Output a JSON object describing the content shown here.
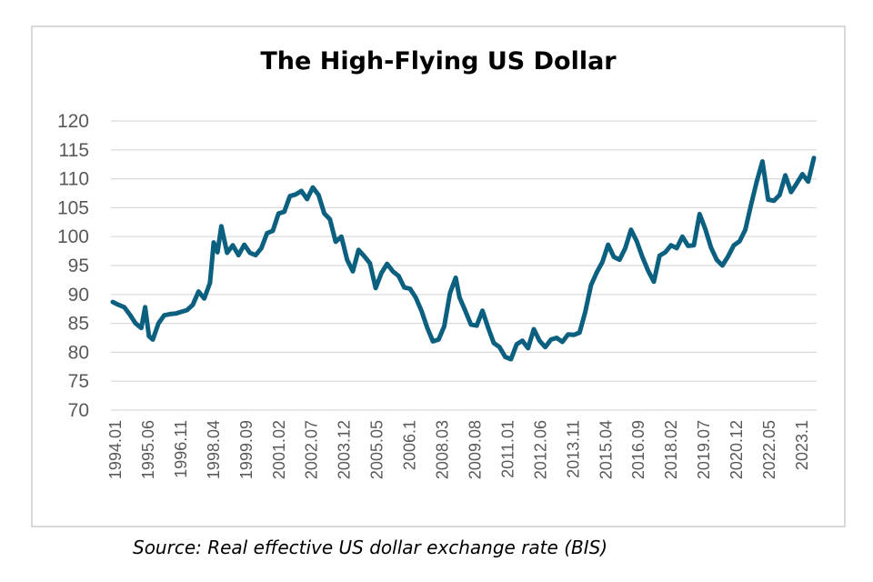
{
  "chart_data": {
    "type": "line",
    "title": "The High-Flying US Dollar",
    "xlabel": "",
    "ylabel": "",
    "ylim": [
      70,
      120
    ],
    "yticks": [
      120,
      115,
      110,
      105,
      100,
      95,
      90,
      85,
      80,
      75,
      70
    ],
    "xtick_labels": [
      "1994.01",
      "1995.06",
      "1996.11",
      "1998.04",
      "1999.09",
      "2001.02",
      "2002.07",
      "2003.12",
      "2005.05",
      "2006.1",
      "2008.03",
      "2009.08",
      "2011.01",
      "2012.06",
      "2013.11",
      "2015.04",
      "2016.09",
      "2018.02",
      "2019.07",
      "2020.12",
      "2022.05",
      "2023.1"
    ],
    "grid": "horizontal",
    "color": "#0b5f7f",
    "series": [
      {
        "x": [
          "1994.01",
          "1994.04",
          "1994.07",
          "1994.10",
          "1995.01",
          "1995.04",
          "1995.06",
          "1995.08",
          "1995.10",
          "1996.01",
          "1996.04",
          "1996.07",
          "1996.10",
          "1997.01",
          "1997.04",
          "1997.07",
          "1997.10",
          "1998.01",
          "1998.04",
          "1998.06",
          "1998.08",
          "1998.10",
          "1999.01",
          "1999.04",
          "1999.07",
          "1999.10",
          "2000.01",
          "2000.04",
          "2000.07",
          "2000.10",
          "2001.01",
          "2001.04",
          "2001.07",
          "2001.10",
          "2002.01",
          "2002.04",
          "2002.07",
          "2002.10",
          "2003.01",
          "2003.04",
          "2003.07",
          "2003.10",
          "2004.01",
          "2004.04",
          "2004.07",
          "2004.10",
          "2005.01",
          "2005.04",
          "2005.07",
          "2005.10",
          "2006.01",
          "2006.04",
          "2006.07",
          "2006.10",
          "2007.01",
          "2007.04",
          "2007.07",
          "2007.10",
          "2008.01",
          "2008.04",
          "2008.07",
          "2008.10",
          "2009.01",
          "2009.03",
          "2009.06",
          "2009.09",
          "2009.12",
          "2010.03",
          "2010.06",
          "2010.09",
          "2010.12",
          "2011.03",
          "2011.06",
          "2011.09",
          "2011.12",
          "2012.03",
          "2012.06",
          "2012.09",
          "2012.12",
          "2013.03",
          "2013.06",
          "2013.09",
          "2013.12",
          "2014.03",
          "2014.06",
          "2014.09",
          "2014.12",
          "2015.03",
          "2015.06",
          "2015.09",
          "2015.12",
          "2016.03",
          "2016.06",
          "2016.09",
          "2016.12",
          "2017.03",
          "2017.06",
          "2017.09",
          "2017.12",
          "2018.03",
          "2018.06",
          "2018.09",
          "2018.12",
          "2019.03",
          "2019.06",
          "2019.09",
          "2019.12",
          "2020.03",
          "2020.06",
          "2020.09",
          "2020.12",
          "2021.03",
          "2021.06",
          "2021.09",
          "2021.12",
          "2022.03",
          "2022.06",
          "2022.09",
          "2022.12",
          "2023.03",
          "2023.06",
          "2023.09",
          "2023.12",
          "2024.03",
          "2024.06",
          "2024.09"
        ],
        "values": [
          88.7,
          88.2,
          87.8,
          86.5,
          85.0,
          84.2,
          87.8,
          82.8,
          82.2,
          85.0,
          86.4,
          86.6,
          86.7,
          87.0,
          87.3,
          88.2,
          90.5,
          89.3,
          92.0,
          99.0,
          97.3,
          101.8,
          97.2,
          98.5,
          96.8,
          98.6,
          97.2,
          96.8,
          98.0,
          100.6,
          101.0,
          104.0,
          104.3,
          107.0,
          107.3,
          107.9,
          106.5,
          108.5,
          107.2,
          104.0,
          103.0,
          99.1,
          100.0,
          96.0,
          94.0,
          97.7,
          96.6,
          95.4,
          91.1,
          93.7,
          95.3,
          94.0,
          93.2,
          91.2,
          91.0,
          89.5,
          87.2,
          84.3,
          81.9,
          82.2,
          84.5,
          90.2,
          92.9,
          89.5,
          87.2,
          84.8,
          84.6,
          87.2,
          84.3,
          81.6,
          80.9,
          79.2,
          78.8,
          81.4,
          82.0,
          80.7,
          84.0,
          82.0,
          80.9,
          82.2,
          82.5,
          81.8,
          83.1,
          83.0,
          83.4,
          87.0,
          91.6,
          93.8,
          95.6,
          98.6,
          96.5,
          96.0,
          98.0,
          101.2,
          99.2,
          96.5,
          94.1,
          92.2,
          96.7,
          97.3,
          98.5,
          98.0,
          100.0,
          98.4,
          98.5,
          103.9,
          101.3,
          98.1,
          96.0,
          95.0,
          96.6,
          98.5,
          99.2,
          101.2,
          105.5,
          109.5,
          113.0,
          106.4,
          106.2,
          107.2,
          110.6,
          107.7,
          109.2,
          110.8,
          109.5,
          113.6
        ]
      }
    ]
  },
  "source": "Source: Real effective US dollar exchange rate (BIS)"
}
